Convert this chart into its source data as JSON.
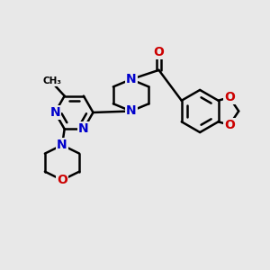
{
  "bg_color": "#e8e8e8",
  "bond_color": "#000000",
  "N_color": "#0000cc",
  "O_color": "#cc0000",
  "line_width": 1.8,
  "font_size_atom": 10,
  "xlim": [
    0,
    10
  ],
  "ylim": [
    0,
    10
  ]
}
